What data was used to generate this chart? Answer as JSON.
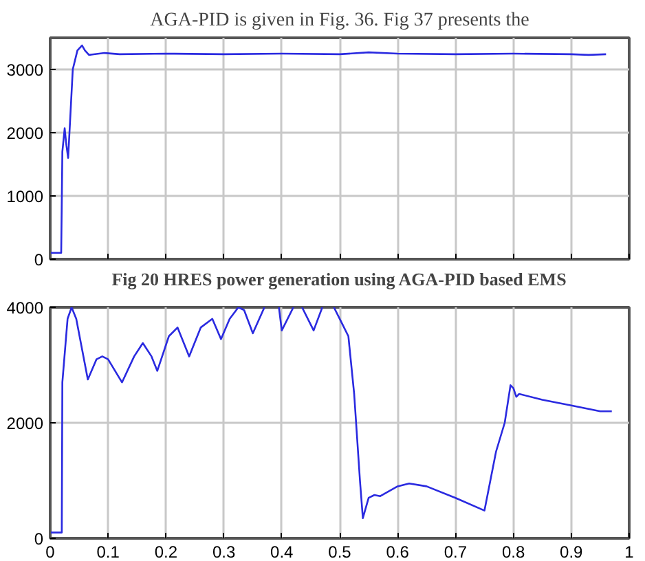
{
  "chart_data": [
    {
      "type": "line",
      "title": "Fig 20 HRES power generation using AGA-PID based EMS",
      "annotations": [
        "AGA-PID is given in Fig. 36. Fig 37 presents the"
      ],
      "xlim": [
        0,
        1
      ],
      "xticks": [
        {
          "value": 0,
          "label": null
        },
        {
          "value": 0.1,
          "label": null
        },
        {
          "value": 0.2,
          "label": null
        },
        {
          "value": 0.3,
          "label": null
        },
        {
          "value": 0.4,
          "label": null
        },
        {
          "value": 0.5,
          "label": null
        },
        {
          "value": 0.6,
          "label": null
        },
        {
          "value": 0.7,
          "label": null
        },
        {
          "value": 0.8,
          "label": null
        },
        {
          "value": 0.9,
          "label": null
        },
        {
          "value": 1,
          "label": null
        }
      ],
      "ylim": [
        0,
        3500
      ],
      "yticks": [
        0,
        1000,
        2000,
        3000
      ],
      "grid": true,
      "tick_labels": "y",
      "series": [
        {
          "color": "#2a2ae0",
          "x": [
            0,
            0.019,
            0.021,
            0.025,
            0.028,
            0.031,
            0.035,
            0.039,
            0.047,
            0.055,
            0.06,
            0.067,
            0.075,
            0.094,
            0.12,
            0.2,
            0.3,
            0.4,
            0.5,
            0.55,
            0.6,
            0.7,
            0.8,
            0.9,
            0.93,
            0.96
          ],
          "values": [
            100,
            100,
            1700,
            2070,
            1800,
            1600,
            2300,
            3000,
            3300,
            3380,
            3300,
            3230,
            3240,
            3260,
            3240,
            3250,
            3240,
            3250,
            3240,
            3270,
            3250,
            3240,
            3250,
            3240,
            3230,
            3240
          ]
        }
      ]
    },
    {
      "type": "line",
      "xlim": [
        0,
        1
      ],
      "xticks": [
        0,
        0.1,
        0.2,
        0.3,
        0.4,
        0.5,
        0.6,
        0.7,
        0.8,
        0.9,
        1
      ],
      "ylim": [
        0,
        4000
      ],
      "yticks": [
        0,
        2000,
        4000
      ],
      "grid": true,
      "series": [
        {
          "color": "#2a2ae0",
          "x": [
            0,
            0.02,
            0.021,
            0.03,
            0.037,
            0.045,
            0.065,
            0.08,
            0.09,
            0.1,
            0.124,
            0.145,
            0.16,
            0.175,
            0.185,
            0.205,
            0.22,
            0.24,
            0.26,
            0.28,
            0.295,
            0.31,
            0.325,
            0.335,
            0.35,
            0.37,
            0.38,
            0.395,
            0.4,
            0.42,
            0.43,
            0.435,
            0.455,
            0.47,
            0.48,
            0.49,
            0.505,
            0.515,
            0.525,
            0.535,
            0.54,
            0.55,
            0.56,
            0.57,
            0.6,
            0.62,
            0.65,
            0.7,
            0.75,
            0.77,
            0.785,
            0.795,
            0.8,
            0.805,
            0.81,
            0.85,
            0.9,
            0.95,
            0.97
          ],
          "values": [
            100,
            100,
            2700,
            3800,
            4000,
            3800,
            2750,
            3100,
            3150,
            3100,
            2700,
            3150,
            3380,
            3150,
            2900,
            3500,
            3650,
            3150,
            3650,
            3800,
            3450,
            3800,
            4000,
            3950,
            3550,
            4000,
            null,
            4000,
            3600,
            4000,
            null,
            4000,
            3600,
            4000,
            null,
            4000,
            3700,
            3500,
            2500,
            1000,
            350,
            700,
            750,
            730,
            900,
            950,
            900,
            700,
            480,
            1500,
            2000,
            2650,
            2600,
            2450,
            2500,
            2400,
            2300,
            2200,
            2200
          ]
        }
      ]
    }
  ]
}
